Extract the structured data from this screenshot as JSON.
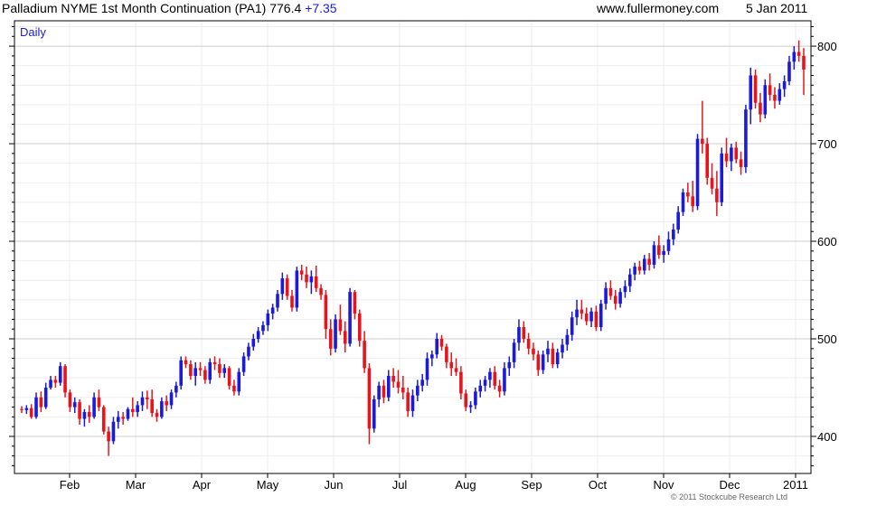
{
  "header": {
    "title": "Palladium NYME 1st Month Continuation (PA1) 776.4",
    "change": "+7.35",
    "site": "www.fullermoney.com",
    "date": "5 Jan 2011"
  },
  "footer": {
    "copyright": "© 2011 Stockcube Research Ltd"
  },
  "chart_data": {
    "type": "candlestick",
    "period_label": "Daily",
    "ylim": [
      362,
      826
    ],
    "y_ticks": [
      400,
      500,
      600,
      700,
      800
    ],
    "x_ticks": [
      "Feb",
      "Mar",
      "Apr",
      "May",
      "Jun",
      "Jul",
      "Aug",
      "Sep",
      "Oct",
      "Nov",
      "Dec",
      "2011"
    ],
    "grid": true,
    "colors": {
      "up": "#1a1ad8",
      "down": "#e8141b",
      "grid": "#cccccc",
      "minor_grid": "#eeeeee"
    },
    "series": [
      {
        "values": [
          [
            428,
            431,
            424,
            427
          ],
          [
            427,
            432,
            423,
            429
          ],
          [
            429,
            433,
            418,
            420
          ],
          [
            420,
            445,
            418,
            440
          ],
          [
            440,
            446,
            425,
            430
          ],
          [
            430,
            455,
            428,
            450
          ],
          [
            450,
            462,
            448,
            458
          ],
          [
            458,
            462,
            450,
            455
          ],
          [
            455,
            476,
            452,
            472
          ],
          [
            472,
            474,
            440,
            445
          ],
          [
            445,
            448,
            425,
            430
          ],
          [
            430,
            440,
            424,
            435
          ],
          [
            435,
            438,
            412,
            418
          ],
          [
            418,
            428,
            410,
            425
          ],
          [
            425,
            432,
            414,
            420
          ],
          [
            420,
            445,
            418,
            440
          ],
          [
            440,
            448,
            426,
            430
          ],
          [
            430,
            432,
            402,
            405
          ],
          [
            405,
            410,
            380,
            395
          ],
          [
            395,
            420,
            392,
            415
          ],
          [
            415,
            426,
            408,
            420
          ],
          [
            420,
            425,
            412,
            418
          ],
          [
            418,
            430,
            416,
            428
          ],
          [
            428,
            440,
            420,
            425
          ],
          [
            425,
            436,
            420,
            432
          ],
          [
            432,
            446,
            426,
            440
          ],
          [
            440,
            447,
            428,
            438
          ],
          [
            438,
            448,
            420,
            424
          ],
          [
            424,
            428,
            415,
            420
          ],
          [
            420,
            440,
            418,
            436
          ],
          [
            436,
            442,
            426,
            432
          ],
          [
            432,
            448,
            428,
            445
          ],
          [
            445,
            456,
            440,
            452
          ],
          [
            452,
            482,
            448,
            478
          ],
          [
            478,
            482,
            470,
            474
          ],
          [
            474,
            478,
            458,
            462
          ],
          [
            462,
            476,
            452,
            470
          ],
          [
            470,
            476,
            462,
            468
          ],
          [
            468,
            472,
            454,
            458
          ],
          [
            458,
            480,
            454,
            476
          ],
          [
            476,
            482,
            468,
            474
          ],
          [
            474,
            480,
            460,
            465
          ],
          [
            465,
            474,
            460,
            470
          ],
          [
            470,
            472,
            448,
            452
          ],
          [
            452,
            458,
            442,
            446
          ],
          [
            446,
            470,
            442,
            466
          ],
          [
            466,
            486,
            462,
            482
          ],
          [
            482,
            496,
            478,
            492
          ],
          [
            492,
            505,
            488,
            500
          ],
          [
            500,
            512,
            496,
            508
          ],
          [
            508,
            518,
            504,
            514
          ],
          [
            514,
            530,
            508,
            526
          ],
          [
            526,
            536,
            520,
            532
          ],
          [
            532,
            550,
            528,
            546
          ],
          [
            546,
            568,
            540,
            562
          ],
          [
            562,
            566,
            540,
            544
          ],
          [
            544,
            550,
            528,
            532
          ],
          [
            532,
            574,
            528,
            570
          ],
          [
            570,
            576,
            560,
            566
          ],
          [
            566,
            574,
            552,
            558
          ],
          [
            558,
            570,
            546,
            564
          ],
          [
            564,
            575,
            548,
            552
          ],
          [
            552,
            556,
            540,
            545
          ],
          [
            545,
            550,
            500,
            510
          ],
          [
            510,
            520,
            483,
            490
          ],
          [
            490,
            525,
            486,
            520
          ],
          [
            520,
            535,
            504,
            508
          ],
          [
            508,
            518,
            486,
            495
          ],
          [
            495,
            552,
            492,
            548
          ],
          [
            548,
            550,
            520,
            526
          ],
          [
            526,
            530,
            492,
            498
          ],
          [
            498,
            508,
            465,
            470
          ],
          [
            470,
            475,
            392,
            408
          ],
          [
            408,
            442,
            404,
            438
          ],
          [
            438,
            456,
            430,
            452
          ],
          [
            452,
            458,
            434,
            440
          ],
          [
            440,
            468,
            436,
            462
          ],
          [
            462,
            470,
            450,
            456
          ],
          [
            456,
            468,
            444,
            450
          ],
          [
            450,
            462,
            438,
            445
          ],
          [
            445,
            450,
            420,
            426
          ],
          [
            426,
            448,
            420,
            442
          ],
          [
            442,
            458,
            436,
            452
          ],
          [
            452,
            464,
            446,
            458
          ],
          [
            458,
            486,
            452,
            480
          ],
          [
            480,
            488,
            472,
            484
          ],
          [
            484,
            506,
            480,
            500
          ],
          [
            500,
            504,
            488,
            492
          ],
          [
            492,
            495,
            470,
            476
          ],
          [
            476,
            486,
            462,
            470
          ],
          [
            470,
            480,
            462,
            466
          ],
          [
            466,
            472,
            438,
            444
          ],
          [
            444,
            448,
            426,
            430
          ],
          [
            430,
            436,
            424,
            432
          ],
          [
            432,
            450,
            428,
            446
          ],
          [
            446,
            458,
            440,
            452
          ],
          [
            452,
            462,
            446,
            458
          ],
          [
            458,
            470,
            450,
            466
          ],
          [
            466,
            472,
            448,
            452
          ],
          [
            452,
            458,
            440,
            446
          ],
          [
            446,
            476,
            442,
            470
          ],
          [
            470,
            482,
            462,
            476
          ],
          [
            476,
            500,
            470,
            496
          ],
          [
            496,
            520,
            488,
            512
          ],
          [
            512,
            518,
            496,
            500
          ],
          [
            500,
            506,
            484,
            490
          ],
          [
            490,
            496,
            478,
            484
          ],
          [
            484,
            488,
            462,
            468
          ],
          [
            468,
            488,
            464,
            484
          ],
          [
            484,
            498,
            476,
            490
          ],
          [
            490,
            496,
            470,
            474
          ],
          [
            474,
            490,
            470,
            486
          ],
          [
            486,
            500,
            480,
            494
          ],
          [
            494,
            510,
            488,
            504
          ],
          [
            504,
            528,
            498,
            522
          ],
          [
            522,
            540,
            514,
            530
          ],
          [
            530,
            540,
            520,
            526
          ],
          [
            526,
            532,
            514,
            518
          ],
          [
            518,
            532,
            512,
            528
          ],
          [
            528,
            534,
            508,
            512
          ],
          [
            512,
            540,
            508,
            536
          ],
          [
            536,
            558,
            530,
            552
          ],
          [
            552,
            560,
            540,
            544
          ],
          [
            544,
            550,
            530,
            536
          ],
          [
            536,
            552,
            532,
            548
          ],
          [
            548,
            560,
            542,
            554
          ],
          [
            554,
            572,
            548,
            566
          ],
          [
            566,
            578,
            560,
            574
          ],
          [
            574,
            580,
            566,
            570
          ],
          [
            570,
            586,
            566,
            582
          ],
          [
            582,
            588,
            570,
            576
          ],
          [
            576,
            600,
            572,
            596
          ],
          [
            596,
            606,
            582,
            586
          ],
          [
            586,
            596,
            578,
            590
          ],
          [
            590,
            610,
            586,
            602
          ],
          [
            602,
            618,
            596,
            612
          ],
          [
            612,
            636,
            608,
            630
          ],
          [
            630,
            654,
            626,
            650
          ],
          [
            650,
            660,
            640,
            646
          ],
          [
            646,
            662,
            630,
            636
          ],
          [
            636,
            710,
            632,
            705
          ],
          [
            705,
            744,
            690,
            700
          ],
          [
            700,
            706,
            658,
            665
          ],
          [
            665,
            680,
            648,
            654
          ],
          [
            654,
            672,
            626,
            640
          ],
          [
            640,
            696,
            636,
            690
          ],
          [
            690,
            706,
            676,
            682
          ],
          [
            682,
            700,
            672,
            696
          ],
          [
            696,
            702,
            680,
            684
          ],
          [
            684,
            692,
            668,
            676
          ],
          [
            676,
            740,
            670,
            735
          ],
          [
            735,
            778,
            720,
            770
          ],
          [
            770,
            776,
            736,
            742
          ],
          [
            742,
            752,
            722,
            730
          ],
          [
            730,
            766,
            726,
            760
          ],
          [
            760,
            772,
            744,
            750
          ],
          [
            750,
            758,
            736,
            744
          ],
          [
            744,
            762,
            740,
            756
          ],
          [
            756,
            770,
            748,
            764
          ],
          [
            764,
            790,
            760,
            784
          ],
          [
            784,
            800,
            776,
            794
          ],
          [
            794,
            806,
            784,
            790
          ],
          [
            790,
            798,
            750,
            776
          ]
        ]
      }
    ]
  }
}
